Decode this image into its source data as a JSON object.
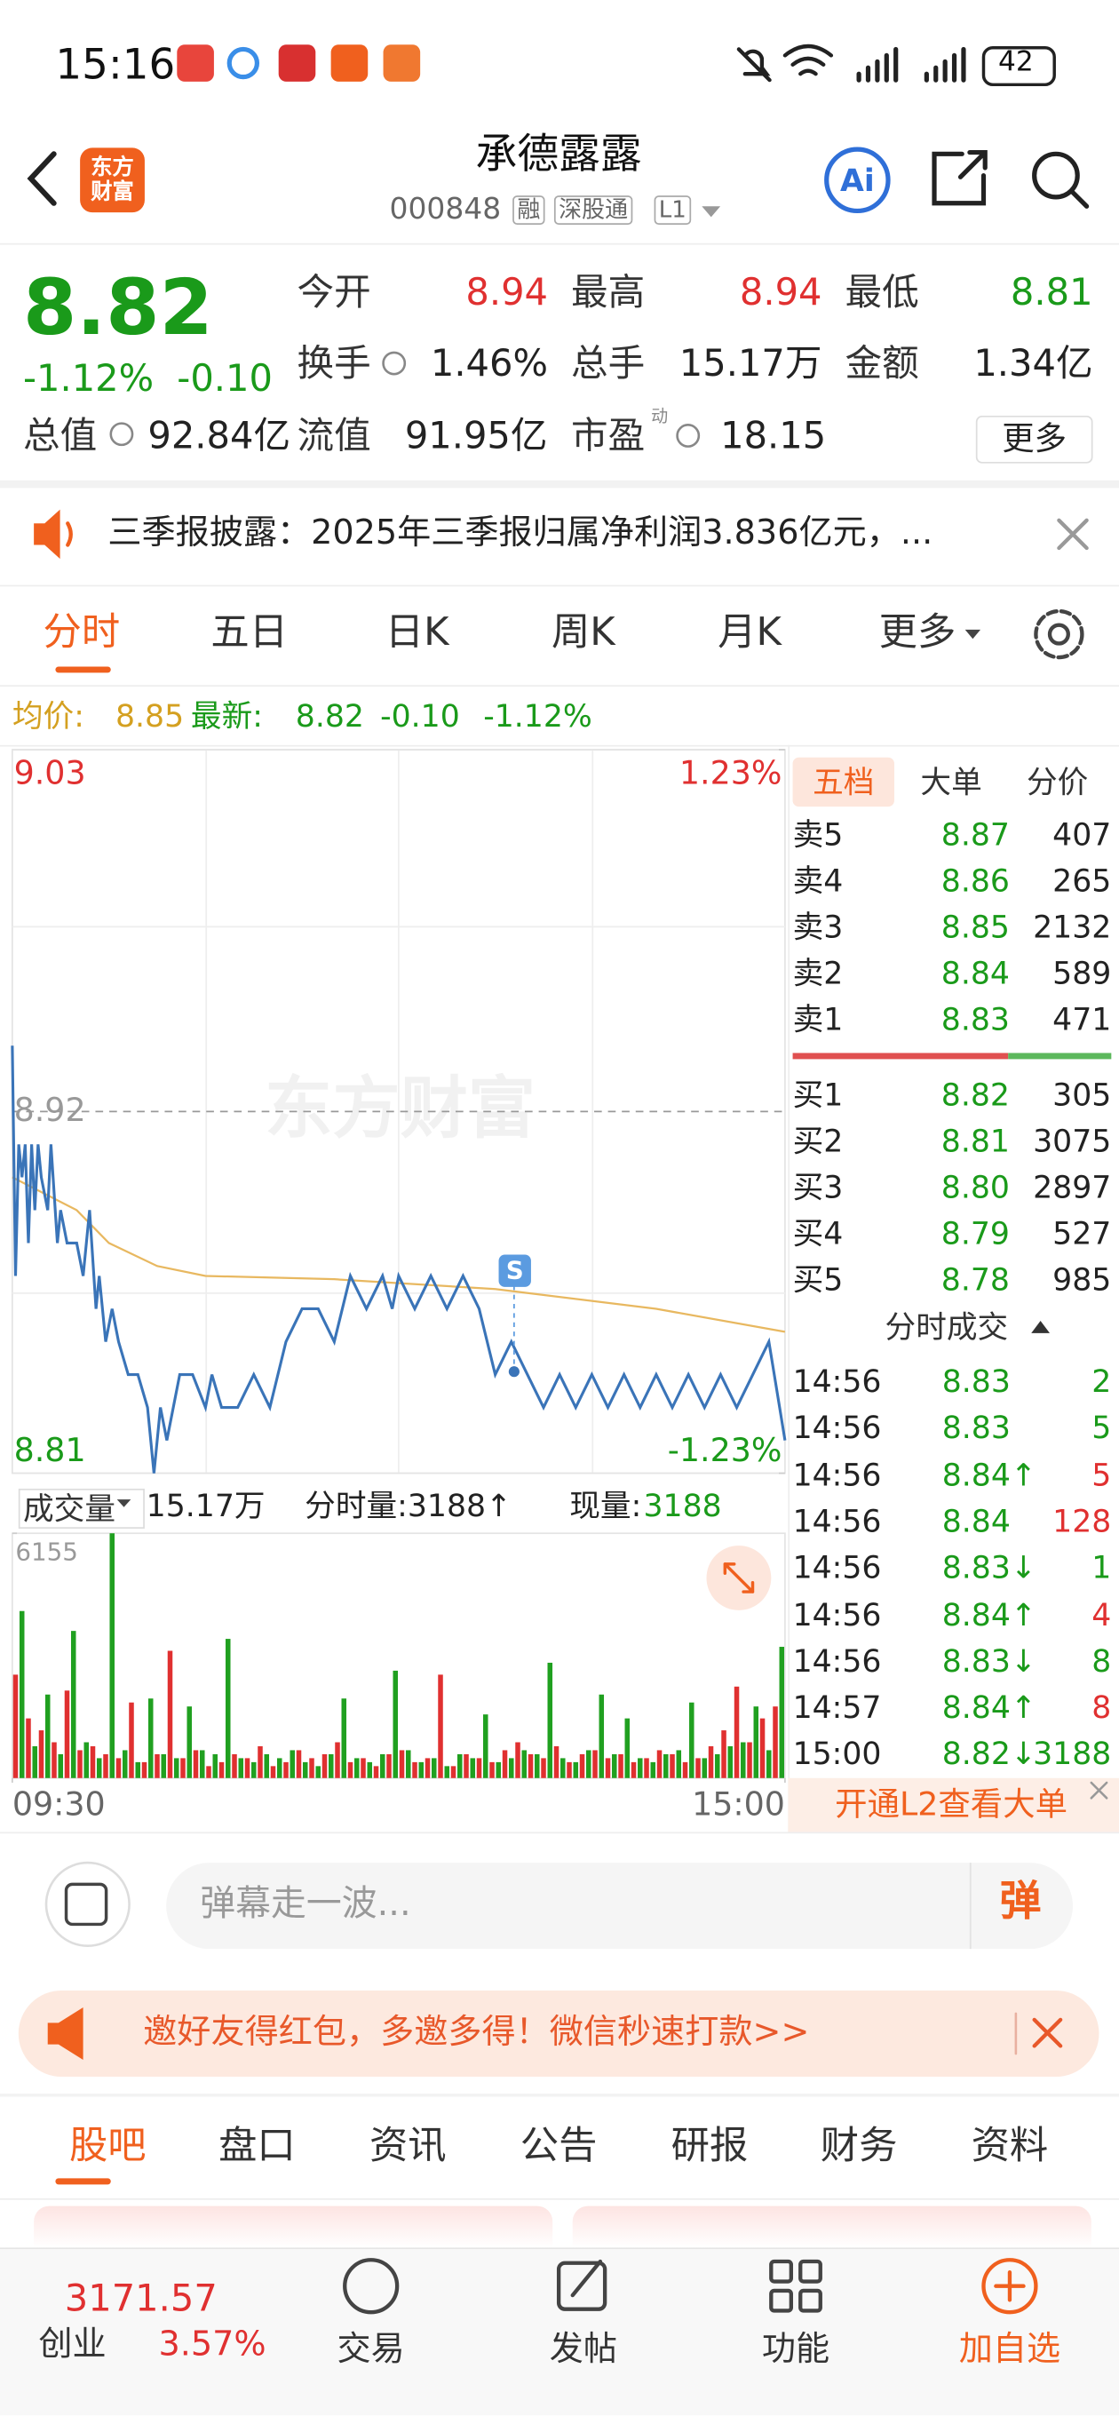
{
  "status_bar": {
    "time": "15:16",
    "battery": "42"
  },
  "header": {
    "logo": "东方财富",
    "title": "承德露露",
    "code": "000848",
    "tags": [
      "融",
      "深股通",
      "L1"
    ],
    "ai": "Ai"
  },
  "quote": {
    "price": "8.82",
    "change_pct": "-1.12%",
    "change": "-0.10",
    "stats": [
      {
        "label": "今开",
        "value": "8.94",
        "color": "#e03030"
      },
      {
        "label": "最高",
        "value": "8.94",
        "color": "#e03030"
      },
      {
        "label": "最低",
        "value": "8.81",
        "color": "#1a9a1a"
      },
      {
        "label": "换手",
        "value": "1.46%"
      },
      {
        "label": "总手",
        "value": "15.17万"
      },
      {
        "label": "金额",
        "value": "1.34亿"
      },
      {
        "label": "总值",
        "value": "92.84亿"
      },
      {
        "label": "流值",
        "value": "91.95亿"
      },
      {
        "label": "市盈",
        "value": "18.15"
      }
    ],
    "pe_tag": "动",
    "more": "更多"
  },
  "notice": "三季报披露：2025年三季报归属净利润3.836亿元，...",
  "chart_tabs": [
    "分时",
    "五日",
    "日K",
    "周K",
    "月K",
    "更多"
  ],
  "info": {
    "avg": "8.85",
    "latest": "8.82",
    "change": "-0.10",
    "change_pct": "-1.12%"
  },
  "chart_data": [
    {
      "type": "line",
      "watermark": "东方财富",
      "marker_label": "S",
      "xlim": [
        0,
        240
      ],
      "xticks": [
        {
          "value": 0,
          "label": "09:30"
        },
        {
          "value": 240,
          "label": "15:00"
        }
      ],
      "ylim": [
        8.81,
        9.03
      ],
      "yticks": [
        8.81,
        8.92,
        9.03
      ],
      "y2lim": [
        -1.23,
        1.23
      ],
      "y2ticks": [
        {
          "value": -1.23,
          "label": "-1.23%"
        },
        {
          "value": 1.23,
          "label": "1.23%"
        }
      ],
      "series": [
        {
          "name": "最新:",
          "color": "#3a74b8",
          "x": [
            0,
            1,
            2,
            3,
            4,
            5,
            6,
            7,
            8,
            9,
            11,
            12,
            14,
            15,
            17,
            20,
            22,
            24,
            26,
            27,
            29,
            31,
            33,
            36,
            39,
            42,
            44,
            46,
            48,
            52,
            56,
            60,
            62,
            65,
            70,
            75,
            80,
            85,
            90,
            95,
            100,
            105,
            110,
            115,
            118,
            120,
            125,
            130,
            135,
            140,
            145,
            150,
            155,
            160,
            165,
            170,
            175,
            180,
            185,
            190,
            195,
            200,
            205,
            210,
            215,
            220,
            225,
            230,
            235,
            240
          ],
          "values": [
            8.94,
            8.87,
            8.91,
            8.9,
            8.91,
            8.88,
            8.91,
            8.89,
            8.91,
            8.9,
            8.89,
            8.91,
            8.88,
            8.89,
            8.88,
            8.88,
            8.87,
            8.89,
            8.86,
            8.87,
            8.85,
            8.86,
            8.85,
            8.84,
            8.84,
            8.83,
            8.81,
            8.83,
            8.82,
            8.84,
            8.84,
            8.83,
            8.84,
            8.83,
            8.83,
            8.84,
            8.83,
            8.85,
            8.86,
            8.86,
            8.85,
            8.87,
            8.86,
            8.87,
            8.86,
            8.87,
            8.86,
            8.87,
            8.86,
            8.87,
            8.86,
            8.84,
            8.85,
            8.84,
            8.83,
            8.84,
            8.83,
            8.84,
            8.83,
            8.84,
            8.83,
            8.84,
            8.83,
            8.84,
            8.83,
            8.84,
            8.83,
            8.84,
            8.85,
            8.82
          ]
        },
        {
          "name": "均价:",
          "color": "#e8b860",
          "x": [
            0,
            10,
            20,
            30,
            45,
            60,
            100,
            150,
            200,
            240
          ],
          "values": [
            8.9,
            8.895,
            8.89,
            8.88,
            8.873,
            8.87,
            8.869,
            8.866,
            8.86,
            8.853
          ]
        }
      ]
    },
    {
      "type": "bar",
      "ylim": [
        0,
        6155
      ],
      "yticks": [
        6155
      ],
      "series": [
        {
          "color": "#e03030",
          "values": [
            2600,
            1500,
            1200,
            900,
            2200,
            700,
            800,
            600,
            500,
            1900,
            400,
            600,
            3200,
            500,
            700,
            300,
            400,
            600,
            500,
            800,
            300,
            400,
            700,
            500,
            600,
            900,
            400,
            500,
            300,
            600,
            700,
            400,
            500,
            2600,
            300,
            600,
            500,
            400,
            700,
            900,
            600,
            500,
            800,
            400,
            600,
            700,
            500,
            600,
            400,
            500,
            700,
            600,
            400,
            500,
            800,
            1200,
            2300,
            900,
            1500,
            1800
          ]
        },
        {
          "color": "#20a020",
          "values": [
            4200,
            800,
            2100,
            600,
            3700,
            900,
            500,
            6155,
            700,
            400,
            2000,
            600,
            500,
            1800,
            700,
            600,
            3500,
            500,
            400,
            600,
            500,
            700,
            400,
            300,
            600,
            2000,
            500,
            400,
            600,
            2700,
            700,
            400,
            500,
            300,
            600,
            500,
            1600,
            400,
            500,
            700,
            600,
            2900,
            500,
            400,
            700,
            2100,
            600,
            1500,
            500,
            400,
            600,
            700,
            1900,
            500,
            600,
            800,
            900,
            1800,
            700,
            3300
          ]
        }
      ]
    }
  ],
  "volume_header": {
    "label": "成交量",
    "total": "15.17万",
    "minute": "分时量:3188↑",
    "current_label": "现量:",
    "current": "3188"
  },
  "order_book": {
    "tabs": [
      "五档",
      "大单",
      "分价"
    ],
    "asks": [
      [
        "卖5",
        "8.87",
        "407"
      ],
      [
        "卖4",
        "8.86",
        "265"
      ],
      [
        "卖3",
        "8.85",
        "2132"
      ],
      [
        "卖2",
        "8.84",
        "589"
      ],
      [
        "卖1",
        "8.83",
        "471"
      ]
    ],
    "bids": [
      [
        "买1",
        "8.82",
        "305"
      ],
      [
        "买2",
        "8.81",
        "3075"
      ],
      [
        "买3",
        "8.80",
        "2897"
      ],
      [
        "买4",
        "8.79",
        "527"
      ],
      [
        "买5",
        "8.78",
        "985"
      ]
    ]
  },
  "trades": {
    "title": "分时成交",
    "rows": [
      {
        "time": "14:56",
        "price": "8.83",
        "vol": "2",
        "vol_color": "#1a9a1a"
      },
      {
        "time": "14:56",
        "price": "8.83",
        "vol": "5",
        "vol_color": "#1a9a1a"
      },
      {
        "time": "14:56",
        "price": "8.84↑",
        "vol": "5",
        "vol_color": "#e03030"
      },
      {
        "time": "14:56",
        "price": "8.84",
        "vol": "128",
        "vol_color": "#e03030"
      },
      {
        "time": "14:56",
        "price": "8.83↓",
        "vol": "1",
        "vol_color": "#1a9a1a"
      },
      {
        "time": "14:56",
        "price": "8.84↑",
        "vol": "4",
        "vol_color": "#e03030"
      },
      {
        "time": "14:56",
        "price": "8.83↓",
        "vol": "8",
        "vol_color": "#1a9a1a"
      },
      {
        "time": "14:57",
        "price": "8.84↑",
        "vol": "8",
        "vol_color": "#e03030"
      },
      {
        "time": "15:00",
        "price": "8.82↓",
        "vol": "3188",
        "vol_color": "#1a9a1a"
      }
    ]
  },
  "l2_banner": "开通L2查看大单",
  "danmu": {
    "placeholder": "弹幕走一波...",
    "button": "弹"
  },
  "promo": "邀好友得红包，多邀多得！微信秒速打款>>",
  "sections": [
    "股吧",
    "盘口",
    "资讯",
    "公告",
    "研报",
    "财务",
    "资料"
  ],
  "bottom_nav": {
    "index_value": "3171.57",
    "index_name": "创业",
    "index_change": "3.57%",
    "items": [
      "交易",
      "发帖",
      "功能",
      "加自选"
    ]
  }
}
